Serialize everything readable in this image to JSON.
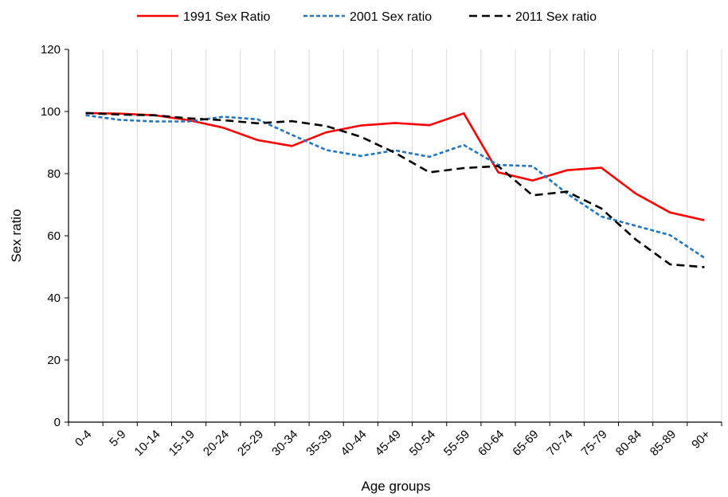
{
  "chart_data": {
    "type": "line",
    "categories": [
      "0-4",
      "5-9",
      "10-14",
      "15-19",
      "20-24",
      "25-29",
      "30-34",
      "35-39",
      "40-44",
      "45-49",
      "50-54",
      "55-59",
      "60-64",
      "65-69",
      "70-74",
      "75-79",
      "80-84",
      "85-89",
      "90+"
    ],
    "series": [
      {
        "name": "1991 Sex Ratio",
        "color": "#ff0000",
        "dash": "solid",
        "values": [
          99.5,
          99.3,
          98.8,
          97.2,
          94.8,
          90.8,
          88.9,
          93.3,
          95.5,
          96.3,
          95.6,
          99.4,
          80.4,
          77.8,
          81.1,
          81.9,
          73.6,
          67.5,
          65.0
        ]
      },
      {
        "name": "2001 Sex ratio",
        "color": "#1f77c4",
        "dash": "dotted",
        "values": [
          98.8,
          97.3,
          96.8,
          96.8,
          98.3,
          97.5,
          92.5,
          87.6,
          85.7,
          87.5,
          85.4,
          89.2,
          82.8,
          82.4,
          73.6,
          66.2,
          63.2,
          60.2,
          52.9
        ]
      },
      {
        "name": "2011 Sex ratio",
        "color": "#000000",
        "dash": "dashed",
        "values": [
          99.5,
          99.0,
          98.8,
          97.8,
          97.2,
          96.2,
          96.9,
          95.3,
          91.9,
          86.7,
          80.4,
          81.8,
          82.4,
          73.0,
          74.2,
          68.8,
          58.8,
          50.8,
          49.9
        ]
      }
    ],
    "xlabel": "Age groups",
    "ylabel": "Sex ratio",
    "ylim": [
      0,
      120
    ],
    "yticks": [
      0,
      20,
      40,
      60,
      80,
      100,
      120
    ],
    "grid": {
      "vertical": true,
      "horizontal": false
    },
    "legend": "top-center"
  }
}
